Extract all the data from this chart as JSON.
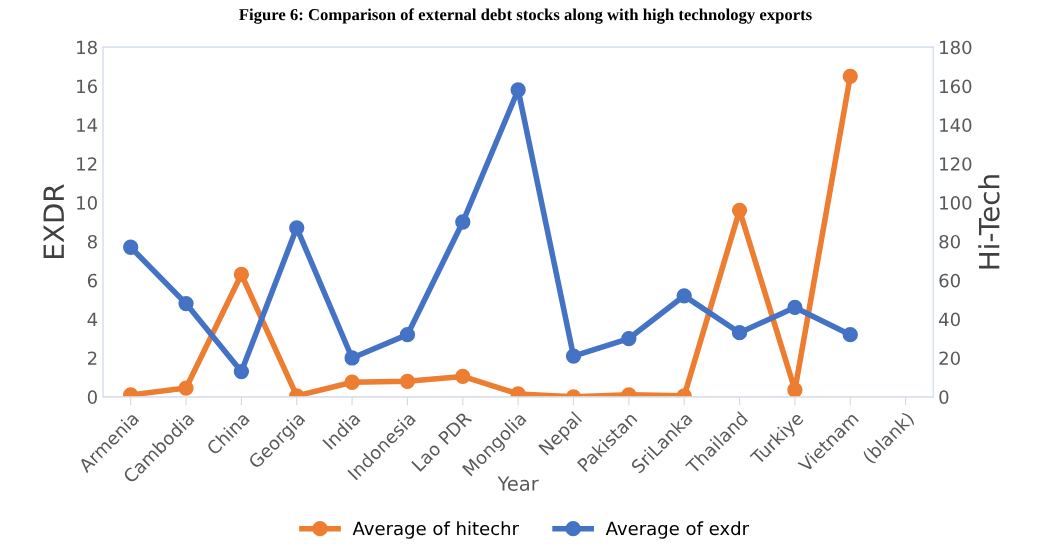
{
  "chart_data": {
    "type": "line",
    "title": "Figure 6: Comparison of external debt stocks along with high technology exports",
    "xlabel": "Year",
    "ylabel": "EXDR",
    "y2label": "Hi-Tech",
    "categories": [
      "Armenia",
      "Cambodia",
      "China",
      "Georgia",
      "India",
      "Indonesia",
      "Lao PDR",
      "Mongolia",
      "Nepal",
      "Pakistan",
      "SriLanka",
      "Thailand",
      "Turkiye",
      "Vietnam",
      "(blank)"
    ],
    "series": [
      {
        "name": "Average of hitechr",
        "color": "#ed7d31",
        "values": [
          0.1,
          0.45,
          6.3,
          0.05,
          0.75,
          0.8,
          1.05,
          0.15,
          0,
          0.1,
          0.05,
          9.6,
          0.35,
          16.5,
          null
        ]
      },
      {
        "name": "Average of exdr",
        "color": "#4472c4",
        "axis": "y2",
        "values": [
          77,
          48,
          13,
          87,
          20,
          32,
          90,
          158,
          21,
          30,
          52,
          33,
          46,
          32,
          null
        ]
      }
    ],
    "ylim": [
      0,
      18
    ],
    "yticks": [
      0,
      2,
      4,
      6,
      8,
      10,
      12,
      14,
      16,
      18
    ],
    "y2lim": [
      0,
      180
    ],
    "y2ticks": [
      0,
      20,
      40,
      60,
      80,
      100,
      120,
      140,
      160,
      180
    ],
    "marker": "circle",
    "line_style": "solid",
    "grid": false,
    "legend": "bottom"
  }
}
